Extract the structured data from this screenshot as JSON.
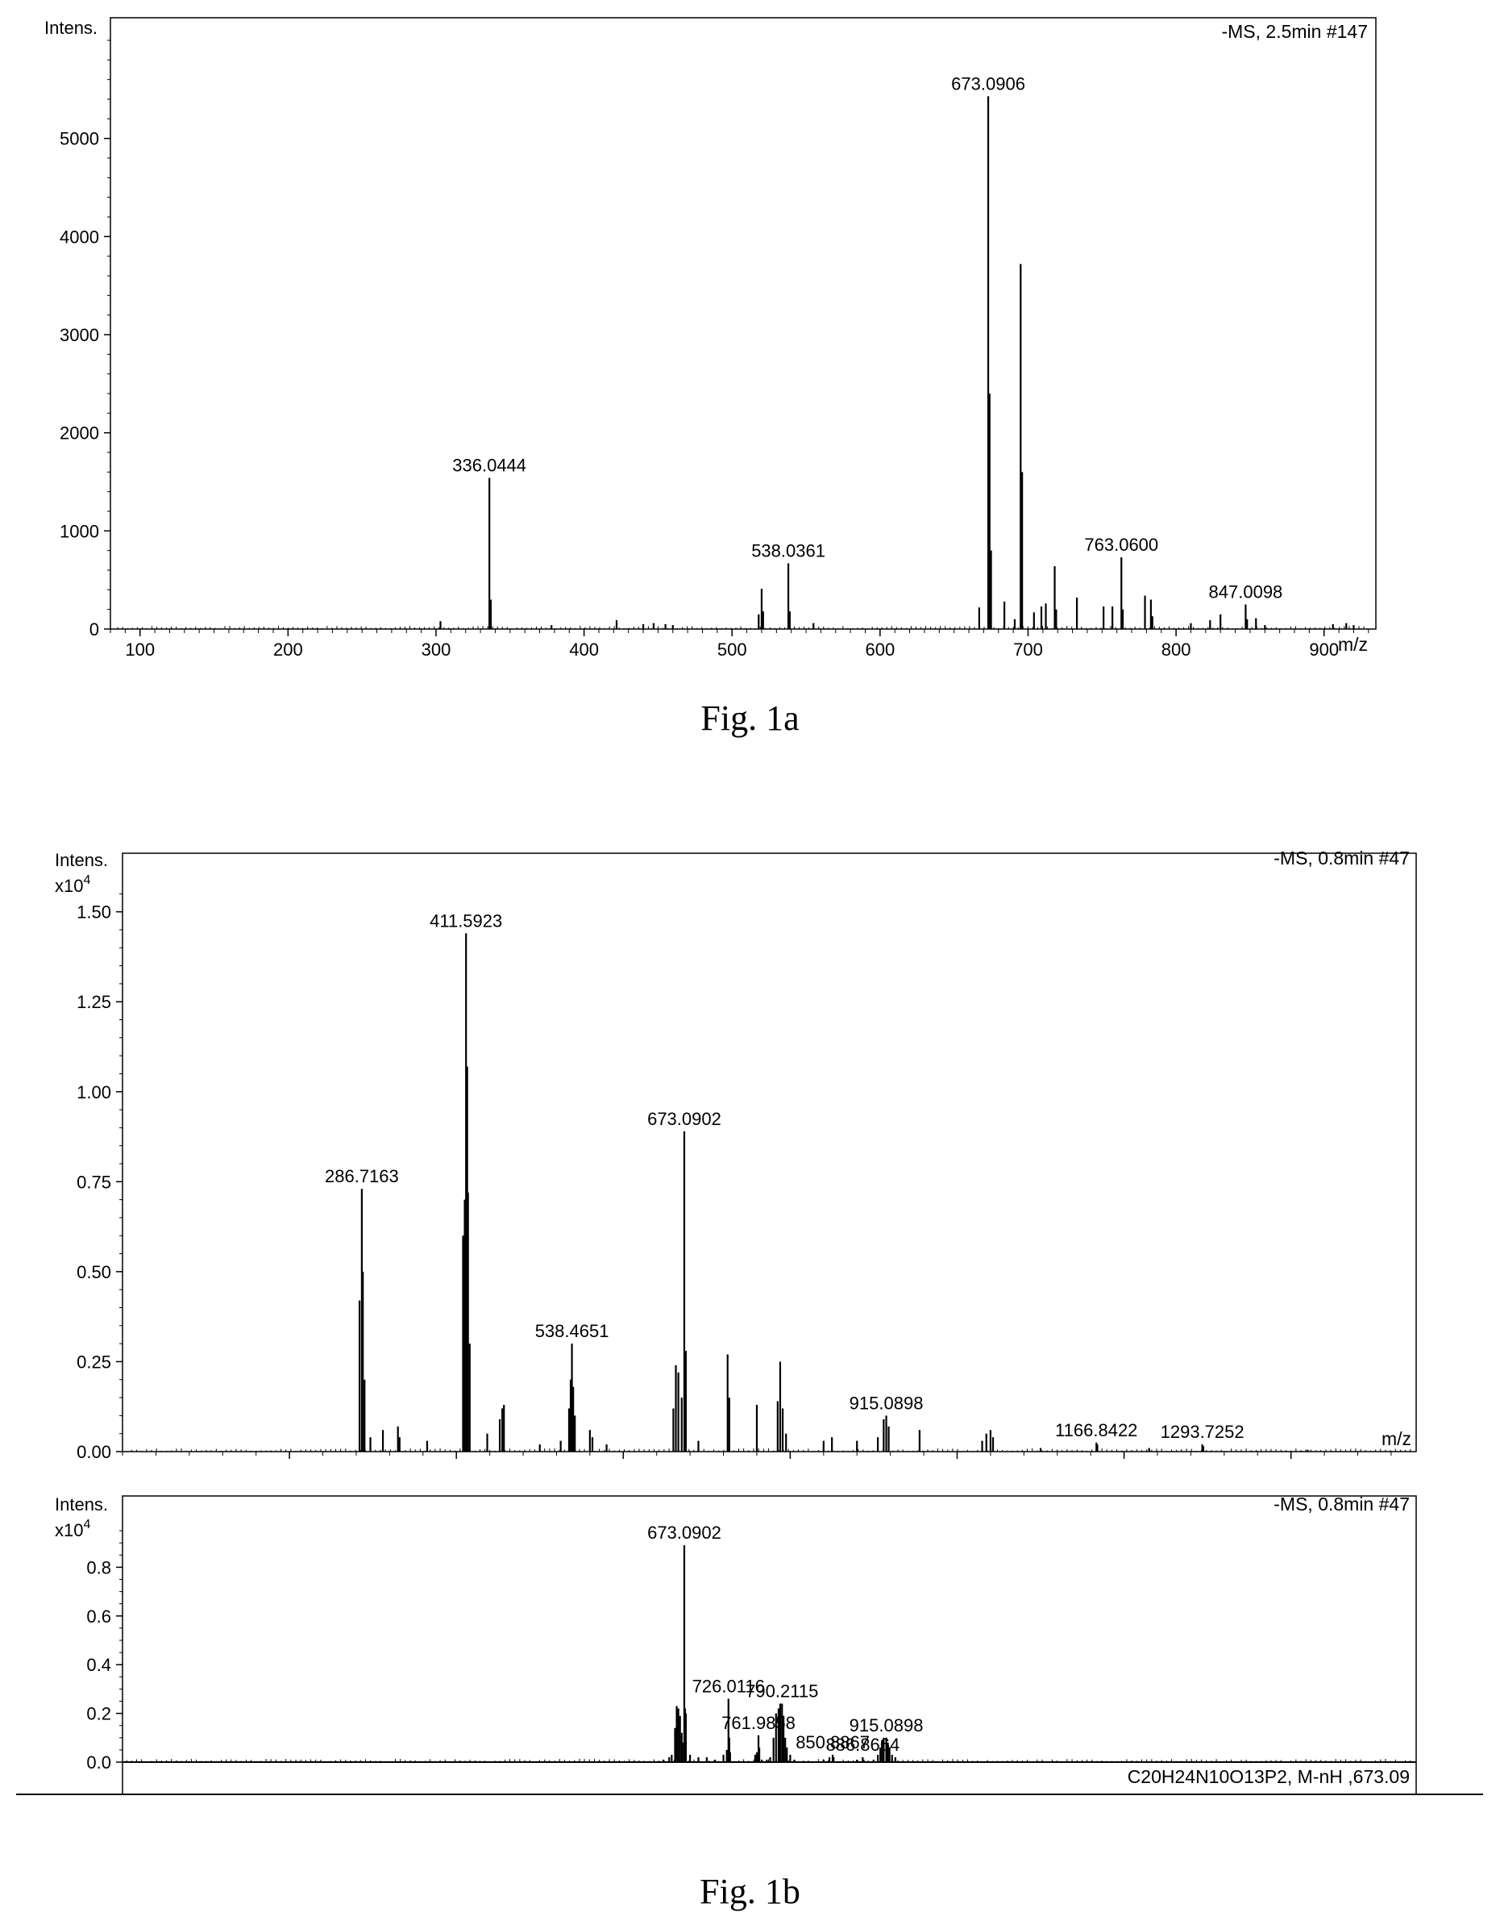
{
  "chart_data": [
    {
      "type": "bar",
      "figure": "1a",
      "header": "-MS, 2.5min #147",
      "ylabel": "Intens.",
      "xlabel": "m/z",
      "xlim": [
        80,
        935
      ],
      "ylim": [
        0,
        6000
      ],
      "xticks": [
        100,
        200,
        300,
        400,
        500,
        600,
        700,
        800,
        900
      ],
      "yticks": [
        0,
        1000,
        2000,
        3000,
        4000,
        5000
      ],
      "annotations": [
        {
          "x": 336.0444,
          "y": 1540,
          "text": "336.0444"
        },
        {
          "x": 538.0361,
          "y": 670,
          "text": "538.0361"
        },
        {
          "x": 673.0906,
          "y": 5430,
          "text": "673.0906"
        },
        {
          "x": 763.06,
          "y": 730,
          "text": "763.0600"
        },
        {
          "x": 847.0098,
          "y": 250,
          "text": "847.0098"
        }
      ],
      "peaks": [
        [
          303,
          80
        ],
        [
          336.0444,
          1540
        ],
        [
          337,
          300
        ],
        [
          378,
          40
        ],
        [
          422,
          90
        ],
        [
          440,
          50
        ],
        [
          447,
          60
        ],
        [
          455,
          50
        ],
        [
          460,
          40
        ],
        [
          518,
          150
        ],
        [
          520,
          410
        ],
        [
          521,
          180
        ],
        [
          538.0361,
          670
        ],
        [
          539,
          180
        ],
        [
          555,
          60
        ],
        [
          667,
          220
        ],
        [
          673.0906,
          5430
        ],
        [
          674,
          2400
        ],
        [
          675,
          800
        ],
        [
          684,
          280
        ],
        [
          691,
          100
        ],
        [
          695,
          3720
        ],
        [
          696,
          1600
        ],
        [
          704,
          170
        ],
        [
          709,
          230
        ],
        [
          712,
          260
        ],
        [
          718,
          640
        ],
        [
          719,
          200
        ],
        [
          733,
          320
        ],
        [
          751,
          230
        ],
        [
          757,
          230
        ],
        [
          763.06,
          730
        ],
        [
          764,
          200
        ],
        [
          779,
          340
        ],
        [
          783,
          300
        ],
        [
          784,
          130
        ],
        [
          810,
          60
        ],
        [
          823,
          90
        ],
        [
          830,
          150
        ],
        [
          847.0098,
          250
        ],
        [
          848,
          100
        ],
        [
          854,
          110
        ],
        [
          860,
          40
        ],
        [
          906,
          50
        ],
        [
          915,
          60
        ],
        [
          920,
          40
        ]
      ]
    },
    {
      "type": "bar",
      "figure": "1b-top",
      "header": "-MS, 0.8min #47",
      "ylabel": "Intens.",
      "yunit": "x10",
      "yexp": "4",
      "xlabel": "m/z",
      "xlim": [
        0,
        1550
      ],
      "ylim": [
        0,
        1.6
      ],
      "xticks": [
        200,
        400,
        600,
        800,
        1000,
        1200,
        1400
      ],
      "yticks": [
        0.0,
        0.25,
        0.5,
        0.75,
        1.0,
        1.25,
        1.5
      ],
      "ytick_labels": [
        "0.00",
        "0.25",
        "0.50",
        "0.75",
        "1.00",
        "1.25",
        "1.50"
      ],
      "annotations": [
        {
          "x": 286.7163,
          "y": 0.73,
          "text": "286.7163"
        },
        {
          "x": 411.5923,
          "y": 1.44,
          "text": "411.5923"
        },
        {
          "x": 538.4651,
          "y": 0.3,
          "text": "538.4651"
        },
        {
          "x": 673.0902,
          "y": 0.89,
          "text": "673.0902"
        },
        {
          "x": 915.0898,
          "y": 0.1,
          "text": "915.0898"
        },
        {
          "x": 1166.8422,
          "y": 0.025,
          "text": "1166.8422"
        },
        {
          "x": 1293.7252,
          "y": 0.02,
          "text": "1293.7252"
        }
      ],
      "peaks": [
        [
          284,
          0.42
        ],
        [
          286.7163,
          0.73
        ],
        [
          288,
          0.5
        ],
        [
          290,
          0.2
        ],
        [
          297,
          0.04
        ],
        [
          312,
          0.06
        ],
        [
          330,
          0.07
        ],
        [
          332,
          0.04
        ],
        [
          365,
          0.03
        ],
        [
          408,
          0.6
        ],
        [
          410,
          0.7
        ],
        [
          411.5923,
          1.44
        ],
        [
          413,
          1.07
        ],
        [
          414,
          0.72
        ],
        [
          416,
          0.3
        ],
        [
          437,
          0.05
        ],
        [
          452,
          0.09
        ],
        [
          455,
          0.12
        ],
        [
          457,
          0.13
        ],
        [
          500,
          0.02
        ],
        [
          525,
          0.03
        ],
        [
          535,
          0.12
        ],
        [
          537,
          0.2
        ],
        [
          538.4651,
          0.3
        ],
        [
          540,
          0.18
        ],
        [
          542,
          0.1
        ],
        [
          560,
          0.06
        ],
        [
          563,
          0.04
        ],
        [
          580,
          0.02
        ],
        [
          660,
          0.12
        ],
        [
          663,
          0.24
        ],
        [
          666,
          0.22
        ],
        [
          670,
          0.15
        ],
        [
          673.0902,
          0.89
        ],
        [
          675,
          0.28
        ],
        [
          690,
          0.03
        ],
        [
          725,
          0.27
        ],
        [
          727,
          0.15
        ],
        [
          760,
          0.13
        ],
        [
          785,
          0.14
        ],
        [
          788,
          0.25
        ],
        [
          791,
          0.12
        ],
        [
          795,
          0.05
        ],
        [
          840,
          0.03
        ],
        [
          850,
          0.04
        ],
        [
          880,
          0.03
        ],
        [
          905,
          0.04
        ],
        [
          912,
          0.09
        ],
        [
          915.0898,
          0.1
        ],
        [
          918,
          0.07
        ],
        [
          955,
          0.06
        ],
        [
          1030,
          0.03
        ],
        [
          1035,
          0.05
        ],
        [
          1040,
          0.06
        ],
        [
          1043,
          0.04
        ],
        [
          1100,
          0.01
        ],
        [
          1166.8422,
          0.025
        ],
        [
          1168,
          0.02
        ],
        [
          1230,
          0.01
        ],
        [
          1293.7252,
          0.02
        ],
        [
          1295,
          0.015
        ],
        [
          1420,
          0.005
        ]
      ]
    },
    {
      "type": "bar",
      "figure": "1b-bottom",
      "header": "-MS, 0.8min #47",
      "footer": "C20H24N10O13P2, M-nH ,673.09",
      "ylabel": "Intens.",
      "yunit": "x10",
      "yexp": "4",
      "xlim": [
        0,
        1550
      ],
      "ylim": [
        0,
        1.0
      ],
      "yticks": [
        0.0,
        0.2,
        0.4,
        0.6,
        0.8
      ],
      "ytick_labels": [
        "0.0",
        "0.2",
        "0.4",
        "0.6",
        "0.8"
      ],
      "annotations": [
        {
          "x": 673.0902,
          "y": 0.89,
          "text": "673.0902"
        },
        {
          "x": 726.0116,
          "y": 0.26,
          "text": "726.0116"
        },
        {
          "x": 761.9858,
          "y": 0.11,
          "text": "761.9858"
        },
        {
          "x": 790.2115,
          "y": 0.24,
          "text": "790.2115"
        },
        {
          "x": 850.8867,
          "y": 0.03,
          "text": "850.8867"
        },
        {
          "x": 886.8664,
          "y": 0.02,
          "text": "886.8664"
        },
        {
          "x": 915.0898,
          "y": 0.1,
          "text": "915.0898"
        }
      ],
      "peaks": [
        [
          648,
          0.01
        ],
        [
          655,
          0.02
        ],
        [
          658,
          0.03
        ],
        [
          662,
          0.14
        ],
        [
          664,
          0.23
        ],
        [
          666,
          0.22
        ],
        [
          668,
          0.19
        ],
        [
          670,
          0.12
        ],
        [
          671,
          0.08
        ],
        [
          673.0902,
          0.89
        ],
        [
          674,
          0.22
        ],
        [
          675,
          0.2
        ],
        [
          680,
          0.03
        ],
        [
          690,
          0.02
        ],
        [
          700,
          0.02
        ],
        [
          710,
          0.01
        ],
        [
          720,
          0.03
        ],
        [
          724,
          0.05
        ],
        [
          726.0116,
          0.26
        ],
        [
          727,
          0.1
        ],
        [
          728,
          0.04
        ],
        [
          758,
          0.03
        ],
        [
          760,
          0.04
        ],
        [
          761.9858,
          0.11
        ],
        [
          763,
          0.06
        ],
        [
          766,
          0.01
        ],
        [
          772,
          0.01
        ],
        [
          776,
          0.02
        ],
        [
          780,
          0.1
        ],
        [
          783,
          0.2
        ],
        [
          786,
          0.22
        ],
        [
          788,
          0.24
        ],
        [
          790.2115,
          0.24
        ],
        [
          792,
          0.19
        ],
        [
          794,
          0.1
        ],
        [
          796,
          0.06
        ],
        [
          800,
          0.03
        ],
        [
          805,
          0.01
        ],
        [
          840,
          0.01
        ],
        [
          847,
          0.02
        ],
        [
          850.8867,
          0.03
        ],
        [
          852,
          0.02
        ],
        [
          880,
          0.01
        ],
        [
          886.8664,
          0.02
        ],
        [
          888,
          0.01
        ],
        [
          900,
          0.01
        ],
        [
          905,
          0.03
        ],
        [
          908,
          0.06
        ],
        [
          910,
          0.09
        ],
        [
          912,
          0.1
        ],
        [
          915.0898,
          0.1
        ],
        [
          917,
          0.08
        ],
        [
          919,
          0.06
        ],
        [
          922,
          0.03
        ],
        [
          926,
          0.02
        ]
      ]
    }
  ],
  "captions": {
    "fig1a": "Fig. 1a",
    "fig1b": "Fig. 1b"
  }
}
